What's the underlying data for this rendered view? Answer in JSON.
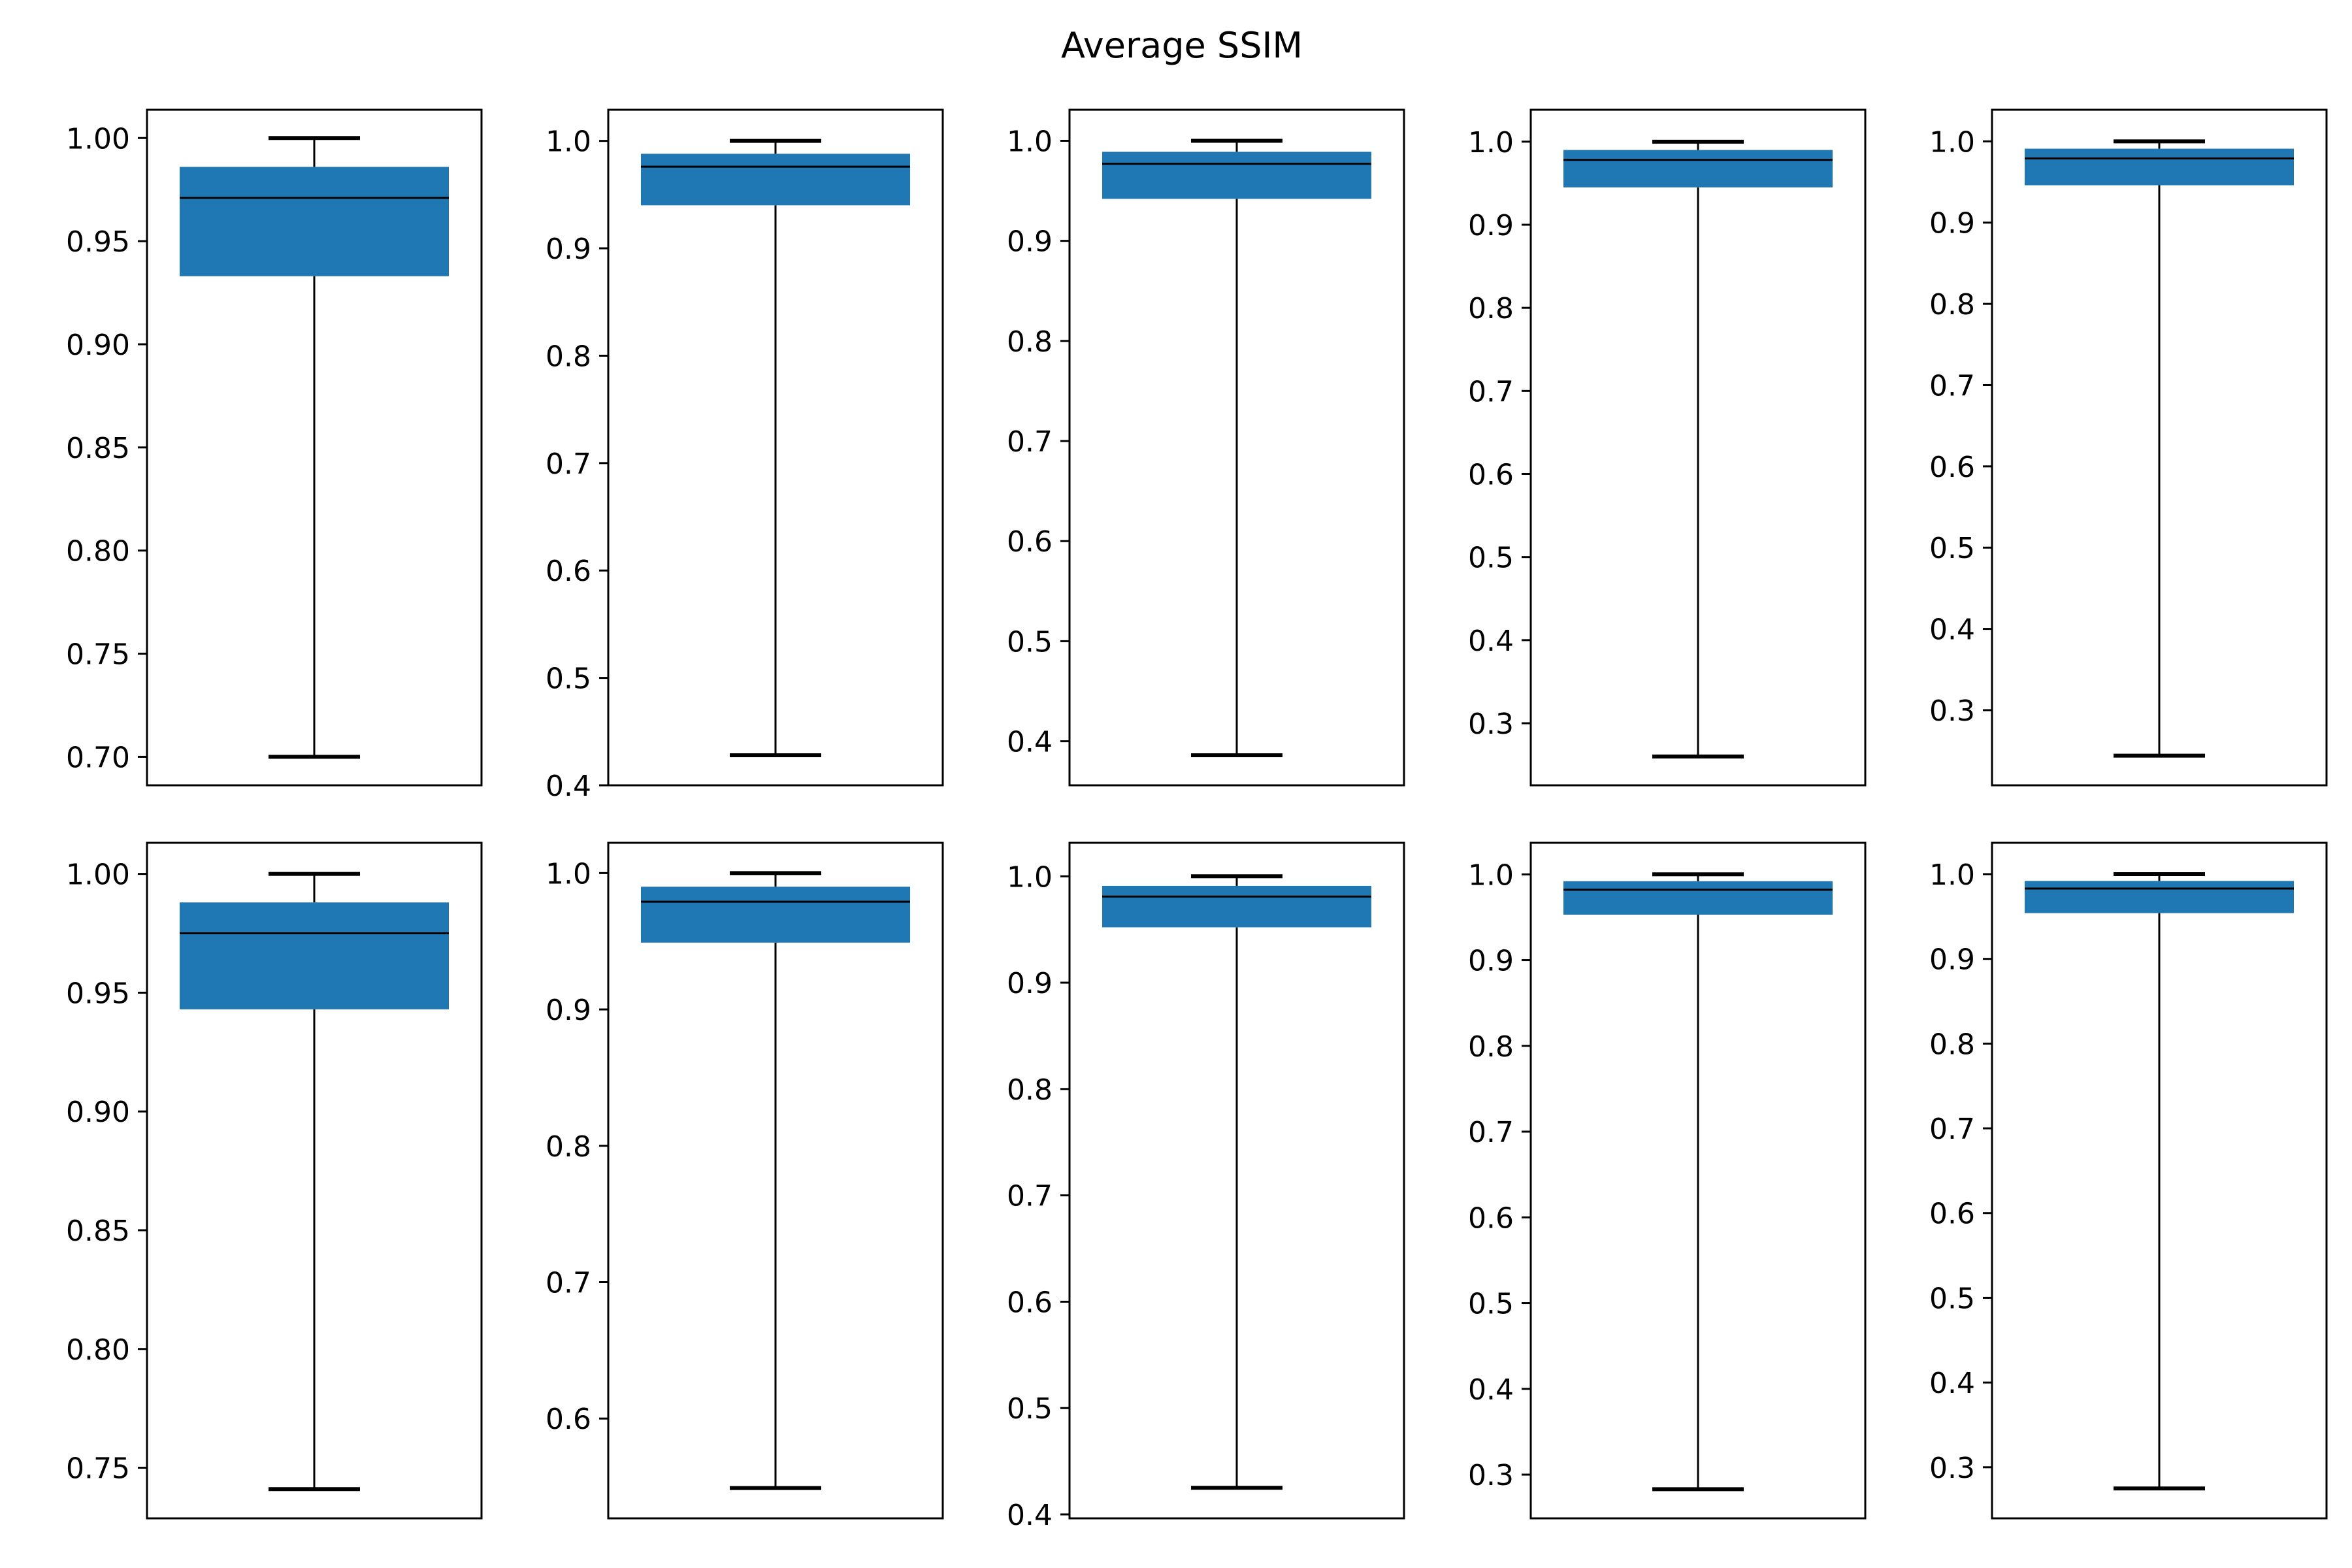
{
  "chart_data": {
    "title": "Average SSIM",
    "type": "box",
    "colors": {
      "box": "#1f77b4",
      "line": "#000000",
      "background": "#ffffff"
    },
    "grid": false,
    "rows": 2,
    "cols": 5,
    "panels": [
      {
        "row": 0,
        "col": 0,
        "ylim": [
          0.6862,
          1.0137
        ],
        "yticks": [
          1.0,
          0.95,
          0.9,
          0.85,
          0.8,
          0.75,
          0.7
        ],
        "yticklabels": [
          "1.00",
          "0.95",
          "0.90",
          "0.85",
          "0.80",
          "0.75",
          "0.70"
        ],
        "whisker_low": 0.7,
        "q1": 0.933,
        "median": 0.971,
        "q3": 0.986,
        "whisker_high": 1.0
      },
      {
        "row": 0,
        "col": 1,
        "ylim": [
          0.4,
          1.029
        ],
        "yticks": [
          1.0,
          0.9,
          0.8,
          0.7,
          0.6,
          0.5,
          0.4
        ],
        "yticklabels": [
          "1.0",
          "0.9",
          "0.8",
          "0.7",
          "0.6",
          "0.5",
          "0.4"
        ],
        "whisker_low": 0.428,
        "q1": 0.94,
        "median": 0.976,
        "q3": 0.988,
        "whisker_high": 1.0
      },
      {
        "row": 0,
        "col": 2,
        "ylim": [
          0.356,
          1.031
        ],
        "yticks": [
          1.0,
          0.9,
          0.8,
          0.7,
          0.6,
          0.5,
          0.4
        ],
        "yticklabels": [
          "1.0",
          "0.9",
          "0.8",
          "0.7",
          "0.6",
          "0.5",
          "0.4"
        ],
        "whisker_low": 0.386,
        "q1": 0.942,
        "median": 0.977,
        "q3": 0.989,
        "whisker_high": 1.0
      },
      {
        "row": 0,
        "col": 3,
        "ylim": [
          0.2253,
          1.0384
        ],
        "yticks": [
          1.0,
          0.9,
          0.8,
          0.7,
          0.6,
          0.5,
          0.4,
          0.3
        ],
        "yticklabels": [
          "1.0",
          "0.9",
          "0.8",
          "0.7",
          "0.6",
          "0.5",
          "0.4",
          "0.3"
        ],
        "whisker_low": 0.26,
        "q1": 0.945,
        "median": 0.978,
        "q3": 0.99,
        "whisker_high": 1.0
      },
      {
        "row": 0,
        "col": 4,
        "ylim": [
          0.2075,
          1.0389
        ],
        "yticks": [
          1.0,
          0.9,
          0.8,
          0.7,
          0.6,
          0.5,
          0.4,
          0.3
        ],
        "yticklabels": [
          "1.0",
          "0.9",
          "0.8",
          "0.7",
          "0.6",
          "0.5",
          "0.4",
          "0.3"
        ],
        "whisker_low": 0.244,
        "q1": 0.946,
        "median": 0.979,
        "q3": 0.991,
        "whisker_high": 1.0
      },
      {
        "row": 1,
        "col": 0,
        "ylim": [
          0.7287,
          1.0131
        ],
        "yticks": [
          1.0,
          0.95,
          0.9,
          0.85,
          0.8,
          0.75
        ],
        "yticklabels": [
          "1.00",
          "0.95",
          "0.90",
          "0.85",
          "0.80",
          "0.75"
        ],
        "whisker_low": 0.741,
        "q1": 0.943,
        "median": 0.975,
        "q3": 0.988,
        "whisker_high": 1.0
      },
      {
        "row": 1,
        "col": 1,
        "ylim": [
          0.5268,
          1.0222
        ],
        "yticks": [
          1.0,
          0.9,
          0.8,
          0.7,
          0.6
        ],
        "yticklabels": [
          "1.0",
          "0.9",
          "0.8",
          "0.7",
          "0.6"
        ],
        "whisker_low": 0.549,
        "q1": 0.949,
        "median": 0.979,
        "q3": 0.99,
        "whisker_high": 1.0
      },
      {
        "row": 1,
        "col": 2,
        "ylim": [
          0.3963,
          1.0315
        ],
        "yticks": [
          1.0,
          0.9,
          0.8,
          0.7,
          0.6,
          0.5,
          0.4
        ],
        "yticklabels": [
          "1.0",
          "0.9",
          "0.8",
          "0.7",
          "0.6",
          "0.5",
          "0.4"
        ],
        "whisker_low": 0.425,
        "q1": 0.952,
        "median": 0.981,
        "q3": 0.991,
        "whisker_high": 1.0
      },
      {
        "row": 1,
        "col": 3,
        "ylim": [
          0.249,
          1.0368
        ],
        "yticks": [
          1.0,
          0.9,
          0.8,
          0.7,
          0.6,
          0.5,
          0.4,
          0.3
        ],
        "yticklabels": [
          "1.0",
          "0.9",
          "0.8",
          "0.7",
          "0.6",
          "0.5",
          "0.4",
          "0.3"
        ],
        "whisker_low": 0.283,
        "q1": 0.953,
        "median": 0.982,
        "q3": 0.992,
        "whisker_high": 1.0
      },
      {
        "row": 1,
        "col": 4,
        "ylim": [
          0.2397,
          1.037
        ],
        "yticks": [
          1.0,
          0.9,
          0.8,
          0.7,
          0.6,
          0.5,
          0.4,
          0.3
        ],
        "yticklabels": [
          "1.0",
          "0.9",
          "0.8",
          "0.7",
          "0.6",
          "0.5",
          "0.4",
          "0.3"
        ],
        "whisker_low": 0.275,
        "q1": 0.954,
        "median": 0.983,
        "q3": 0.992,
        "whisker_high": 1.0
      }
    ]
  }
}
